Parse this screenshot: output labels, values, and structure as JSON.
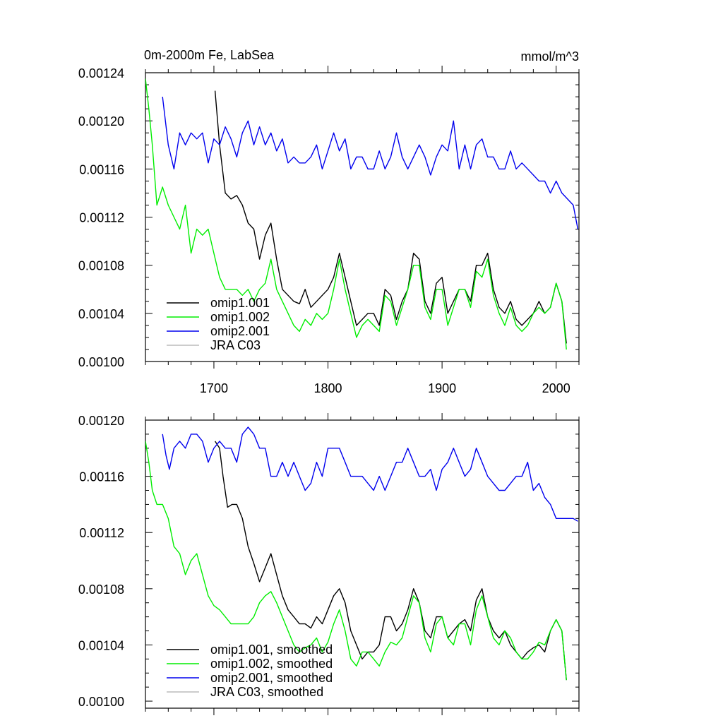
{
  "chart_data": [
    {
      "type": "line",
      "title": "0m-2000m Fe, LabSea",
      "units": "mmol/m^3",
      "xlim": [
        1640,
        2020
      ],
      "ylim": [
        0.001,
        0.00124
      ],
      "x_ticks": [
        1700,
        1800,
        1900,
        2000
      ],
      "y_ticks": [
        "0.00100",
        "0.00104",
        "0.00108",
        "0.00112",
        "0.00116",
        "0.00120",
        "0.00124"
      ],
      "legend_position": "bottom-left",
      "series": [
        {
          "name": "omip1.001",
          "color": "#000000",
          "x": [
            1701,
            1705,
            1710,
            1715,
            1720,
            1725,
            1730,
            1735,
            1740,
            1745,
            1750,
            1755,
            1760,
            1765,
            1770,
            1775,
            1780,
            1785,
            1790,
            1795,
            1800,
            1805,
            1810,
            1815,
            1820,
            1825,
            1830,
            1835,
            1840,
            1845,
            1850,
            1855,
            1860,
            1865,
            1870,
            1875,
            1880,
            1885,
            1890,
            1895,
            1900,
            1905,
            1910,
            1915,
            1920,
            1925,
            1930,
            1935,
            1940,
            1945,
            1950,
            1955,
            1960,
            1965,
            1970,
            1975,
            1980,
            1985,
            1990,
            1995,
            2000,
            2005,
            2009
          ],
          "y": [
            0.001225,
            0.00118,
            0.00114,
            0.001135,
            0.001138,
            0.00113,
            0.001115,
            0.00111,
            0.001085,
            0.001105,
            0.001115,
            0.001085,
            0.00106,
            0.001055,
            0.00105,
            0.001048,
            0.00106,
            0.001045,
            0.00105,
            0.001055,
            0.00106,
            0.00107,
            0.00109,
            0.00107,
            0.00105,
            0.00103,
            0.001035,
            0.00104,
            0.00104,
            0.00103,
            0.00106,
            0.001055,
            0.001035,
            0.00105,
            0.00106,
            0.00109,
            0.001085,
            0.00105,
            0.00104,
            0.001065,
            0.00107,
            0.00104,
            0.00105,
            0.00106,
            0.00106,
            0.00105,
            0.00108,
            0.00108,
            0.00109,
            0.00106,
            0.001045,
            0.00104,
            0.00105,
            0.001035,
            0.00103,
            0.001035,
            0.00104,
            0.00105,
            0.00104,
            0.001045,
            0.001065,
            0.00105,
            0.001015
          ]
        },
        {
          "name": "omip1.002",
          "color": "#00ee00",
          "x": [
            1640,
            1643,
            1646,
            1650,
            1655,
            1660,
            1665,
            1670,
            1675,
            1680,
            1685,
            1690,
            1695,
            1700,
            1705,
            1710,
            1715,
            1720,
            1725,
            1730,
            1735,
            1740,
            1745,
            1750,
            1755,
            1760,
            1765,
            1770,
            1775,
            1780,
            1785,
            1790,
            1795,
            1800,
            1805,
            1810,
            1815,
            1820,
            1825,
            1830,
            1835,
            1840,
            1845,
            1850,
            1855,
            1860,
            1865,
            1870,
            1875,
            1880,
            1885,
            1890,
            1895,
            1900,
            1905,
            1910,
            1915,
            1920,
            1925,
            1930,
            1935,
            1940,
            1945,
            1950,
            1955,
            1960,
            1965,
            1970,
            1975,
            1980,
            1985,
            1990,
            1995,
            2000,
            2005,
            2009
          ],
          "y": [
            0.001235,
            0.00121,
            0.00118,
            0.00113,
            0.001145,
            0.00113,
            0.00112,
            0.00111,
            0.00113,
            0.00109,
            0.00111,
            0.001105,
            0.00111,
            0.00109,
            0.00107,
            0.00106,
            0.00106,
            0.00106,
            0.001055,
            0.00106,
            0.00105,
            0.00106,
            0.001065,
            0.001085,
            0.00106,
            0.00105,
            0.00104,
            0.00103,
            0.001025,
            0.001035,
            0.00103,
            0.00104,
            0.001035,
            0.00104,
            0.00106,
            0.001085,
            0.00106,
            0.00104,
            0.00102,
            0.00103,
            0.001035,
            0.00103,
            0.001025,
            0.001055,
            0.00105,
            0.00103,
            0.001045,
            0.00106,
            0.00108,
            0.00108,
            0.001045,
            0.001035,
            0.00106,
            0.00106,
            0.00103,
            0.001045,
            0.00106,
            0.00106,
            0.001045,
            0.001075,
            0.00107,
            0.001085,
            0.001055,
            0.00104,
            0.00103,
            0.001045,
            0.00103,
            0.001025,
            0.00103,
            0.00104,
            0.001045,
            0.00104,
            0.001045,
            0.001065,
            0.00105,
            0.00101
          ]
        },
        {
          "name": "omip2.001",
          "color": "#0000ee",
          "x": [
            1655,
            1660,
            1665,
            1670,
            1675,
            1680,
            1685,
            1690,
            1695,
            1700,
            1705,
            1710,
            1715,
            1720,
            1725,
            1730,
            1735,
            1740,
            1745,
            1750,
            1755,
            1760,
            1765,
            1770,
            1775,
            1780,
            1785,
            1790,
            1795,
            1800,
            1805,
            1810,
            1815,
            1820,
            1825,
            1830,
            1835,
            1840,
            1845,
            1850,
            1855,
            1860,
            1865,
            1870,
            1875,
            1880,
            1885,
            1890,
            1895,
            1900,
            1905,
            1910,
            1915,
            1920,
            1925,
            1930,
            1935,
            1940,
            1945,
            1950,
            1955,
            1960,
            1965,
            1970,
            1975,
            1980,
            1985,
            1990,
            1995,
            2000,
            2005,
            2010,
            2015,
            2019
          ],
          "y": [
            0.00122,
            0.00118,
            0.00116,
            0.00119,
            0.00118,
            0.00119,
            0.001185,
            0.00119,
            0.001165,
            0.001185,
            0.00118,
            0.001195,
            0.001185,
            0.00117,
            0.00119,
            0.0012,
            0.00118,
            0.001195,
            0.00118,
            0.00119,
            0.001175,
            0.001185,
            0.001165,
            0.00117,
            0.001165,
            0.001165,
            0.00117,
            0.00118,
            0.00116,
            0.001175,
            0.00119,
            0.001175,
            0.001185,
            0.00116,
            0.00117,
            0.00117,
            0.00116,
            0.00116,
            0.001175,
            0.00116,
            0.00117,
            0.00119,
            0.00117,
            0.00116,
            0.00117,
            0.00118,
            0.00117,
            0.001155,
            0.00117,
            0.00118,
            0.001175,
            0.0012,
            0.00116,
            0.00118,
            0.00116,
            0.00118,
            0.001185,
            0.00117,
            0.00117,
            0.00116,
            0.00116,
            0.001175,
            0.00116,
            0.001165,
            0.00116,
            0.001155,
            0.00115,
            0.00115,
            0.00114,
            0.00115,
            0.00114,
            0.001135,
            0.00113,
            0.00111
          ]
        },
        {
          "name": "JRA C03",
          "color": "#bbbbbb",
          "x": [],
          "y": []
        }
      ]
    },
    {
      "type": "line",
      "xlim": [
        1640,
        2020
      ],
      "ylim": [
        0.000995,
        0.0012
      ],
      "y_ticks": [
        "0.00100",
        "0.00104",
        "0.00108",
        "0.00112",
        "0.00116",
        "0.00120"
      ],
      "legend_position": "bottom-left",
      "series": [
        {
          "name": "omip1.001, smoothed",
          "color": "#000000",
          "x": [
            1701,
            1705,
            1708,
            1712,
            1716,
            1720,
            1725,
            1730,
            1735,
            1740,
            1745,
            1750,
            1755,
            1760,
            1765,
            1770,
            1775,
            1780,
            1785,
            1790,
            1795,
            1800,
            1805,
            1810,
            1815,
            1820,
            1825,
            1830,
            1835,
            1840,
            1845,
            1850,
            1855,
            1860,
            1865,
            1870,
            1875,
            1880,
            1885,
            1890,
            1895,
            1900,
            1905,
            1910,
            1915,
            1920,
            1925,
            1930,
            1935,
            1940,
            1945,
            1950,
            1955,
            1960,
            1965,
            1970,
            1975,
            1980,
            1985,
            1990,
            1995,
            2000,
            2005,
            2009
          ],
          "y": [
            0.001185,
            0.00118,
            0.00116,
            0.001138,
            0.00114,
            0.00114,
            0.00113,
            0.00111,
            0.001098,
            0.001085,
            0.001095,
            0.001105,
            0.00109,
            0.001075,
            0.001065,
            0.00106,
            0.001055,
            0.001055,
            0.001052,
            0.00106,
            0.001055,
            0.001065,
            0.001075,
            0.00108,
            0.00107,
            0.00105,
            0.00104,
            0.00103,
            0.001035,
            0.001035,
            0.00104,
            0.00106,
            0.00106,
            0.00105,
            0.001055,
            0.001065,
            0.00108,
            0.00107,
            0.00105,
            0.001045,
            0.00106,
            0.00106,
            0.001045,
            0.00105,
            0.001055,
            0.001058,
            0.00105,
            0.001072,
            0.00108,
            0.00106,
            0.00105,
            0.001045,
            0.00105,
            0.00104,
            0.001035,
            0.00103,
            0.001035,
            0.001038,
            0.00104,
            0.001035,
            0.00105,
            0.001058,
            0.00105,
            0.001015
          ]
        },
        {
          "name": "omip1.002, smoothed",
          "color": "#00ee00",
          "x": [
            1640,
            1643,
            1646,
            1650,
            1655,
            1660,
            1665,
            1670,
            1675,
            1680,
            1685,
            1690,
            1695,
            1700,
            1705,
            1710,
            1715,
            1720,
            1725,
            1730,
            1735,
            1740,
            1745,
            1750,
            1755,
            1760,
            1765,
            1770,
            1775,
            1780,
            1785,
            1790,
            1795,
            1800,
            1805,
            1810,
            1815,
            1820,
            1825,
            1830,
            1835,
            1840,
            1845,
            1850,
            1855,
            1860,
            1865,
            1870,
            1875,
            1880,
            1885,
            1890,
            1895,
            1900,
            1905,
            1910,
            1915,
            1920,
            1925,
            1930,
            1935,
            1940,
            1945,
            1950,
            1955,
            1960,
            1965,
            1970,
            1975,
            1980,
            1985,
            1990,
            1995,
            2000,
            2005,
            2009
          ],
          "y": [
            0.001185,
            0.00117,
            0.00115,
            0.00114,
            0.00114,
            0.00113,
            0.00111,
            0.001105,
            0.00109,
            0.0011,
            0.001105,
            0.00109,
            0.001075,
            0.001068,
            0.001065,
            0.00106,
            0.001055,
            0.001055,
            0.001055,
            0.001055,
            0.00106,
            0.00107,
            0.001075,
            0.001078,
            0.00107,
            0.00106,
            0.00105,
            0.00104,
            0.001035,
            0.001038,
            0.00104,
            0.001045,
            0.001035,
            0.001042,
            0.001055,
            0.001065,
            0.00105,
            0.00103,
            0.001025,
            0.001035,
            0.001035,
            0.00103,
            0.001025,
            0.001035,
            0.001042,
            0.00104,
            0.001045,
            0.00106,
            0.001075,
            0.00107,
            0.001045,
            0.001035,
            0.001055,
            0.00106,
            0.001045,
            0.00104,
            0.001055,
            0.001055,
            0.00104,
            0.001065,
            0.001075,
            0.00106,
            0.001045,
            0.00104,
            0.00105,
            0.001045,
            0.001035,
            0.00103,
            0.00103,
            0.001035,
            0.001042,
            0.00104,
            0.00105,
            0.001058,
            0.00105,
            0.001015
          ]
        },
        {
          "name": "omip2.001, smoothed",
          "color": "#0000ee",
          "x": [
            1655,
            1658,
            1661,
            1665,
            1670,
            1675,
            1680,
            1685,
            1690,
            1695,
            1700,
            1705,
            1710,
            1715,
            1720,
            1725,
            1730,
            1735,
            1740,
            1745,
            1750,
            1755,
            1760,
            1765,
            1770,
            1775,
            1780,
            1785,
            1790,
            1795,
            1800,
            1805,
            1810,
            1815,
            1820,
            1825,
            1830,
            1835,
            1840,
            1845,
            1850,
            1855,
            1860,
            1865,
            1870,
            1875,
            1880,
            1885,
            1890,
            1895,
            1900,
            1905,
            1910,
            1915,
            1920,
            1925,
            1930,
            1935,
            1940,
            1945,
            1950,
            1955,
            1960,
            1965,
            1970,
            1975,
            1980,
            1985,
            1990,
            1995,
            2000,
            2005,
            2010,
            2015,
            2019
          ],
          "y": [
            0.00119,
            0.001175,
            0.001165,
            0.00118,
            0.001185,
            0.00118,
            0.00119,
            0.00119,
            0.001185,
            0.00117,
            0.00118,
            0.001185,
            0.00118,
            0.00118,
            0.00117,
            0.00119,
            0.001195,
            0.00119,
            0.00118,
            0.00118,
            0.00116,
            0.00116,
            0.00117,
            0.00116,
            0.00117,
            0.00116,
            0.00115,
            0.001155,
            0.00117,
            0.00116,
            0.00118,
            0.00118,
            0.00118,
            0.00117,
            0.00116,
            0.00116,
            0.00116,
            0.001155,
            0.00115,
            0.00116,
            0.00115,
            0.00116,
            0.00117,
            0.00117,
            0.00118,
            0.00117,
            0.00116,
            0.00116,
            0.001165,
            0.00115,
            0.001165,
            0.00117,
            0.00118,
            0.00117,
            0.00116,
            0.001165,
            0.00118,
            0.00117,
            0.00116,
            0.001155,
            0.00115,
            0.00115,
            0.001155,
            0.00116,
            0.00116,
            0.00117,
            0.00115,
            0.001155,
            0.001145,
            0.00114,
            0.00113,
            0.00113,
            0.00113,
            0.00113,
            0.001128
          ]
        },
        {
          "name": "JRA C03, smoothed",
          "color": "#bbbbbb",
          "x": [],
          "y": []
        }
      ]
    }
  ]
}
